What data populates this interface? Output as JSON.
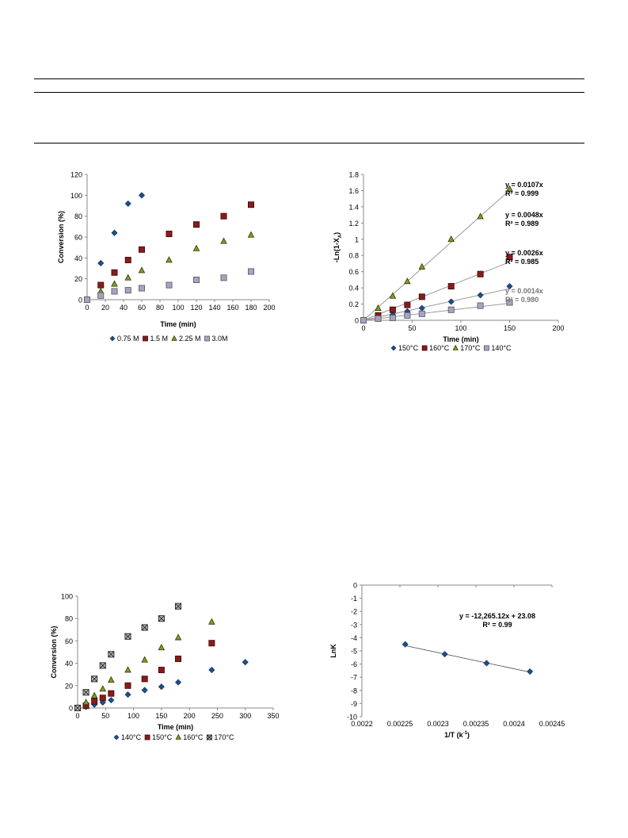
{
  "chart_data": [
    {
      "type": "scatter",
      "xlabel": "Time (min)",
      "ylabel": "Conversion (%)",
      "xlim": [
        0,
        200
      ],
      "ylim": [
        0,
        120
      ],
      "xticks": [
        "0",
        "20",
        "40",
        "60",
        "80",
        "100",
        "120",
        "140",
        "160",
        "180",
        "200"
      ],
      "yticks": [
        "0",
        "20",
        "40",
        "60",
        "80",
        "100",
        "120"
      ],
      "legend_position": "bottom",
      "series": [
        {
          "name": "0.75 M",
          "marker": "diamond",
          "color": "#1f4e8c",
          "x": [
            0,
            15,
            30,
            45,
            60
          ],
          "y": [
            0,
            35,
            64,
            92,
            100
          ]
        },
        {
          "name": "1.5 M",
          "marker": "square",
          "color": "#8b1a1a",
          "x": [
            0,
            15,
            30,
            45,
            60,
            90,
            120,
            150,
            180
          ],
          "y": [
            0,
            14,
            26,
            38,
            48,
            63,
            72,
            80,
            91
          ]
        },
        {
          "name": "2.25 M",
          "marker": "triangle",
          "color": "#8a9a1e",
          "x": [
            0,
            15,
            30,
            45,
            60,
            90,
            120,
            150,
            180
          ],
          "y": [
            0,
            8,
            15,
            21,
            28,
            38,
            49,
            56,
            62
          ]
        },
        {
          "name": "3.0M",
          "marker": "square-light",
          "color": "#a7a3c4",
          "x": [
            0,
            15,
            30,
            45,
            60,
            90,
            120,
            150,
            180
          ],
          "y": [
            0,
            4,
            8,
            9,
            11,
            14,
            19,
            21,
            27
          ]
        }
      ]
    },
    {
      "type": "scatter",
      "xlabel": "Time (min)",
      "ylabel": "-Ln(1-X",
      "ylabel_sub": "A",
      "ylabel_end": ")",
      "xlim": [
        0,
        200
      ],
      "ylim": [
        0,
        1.8
      ],
      "xticks": [
        "0",
        "50",
        "100",
        "150",
        "200"
      ],
      "yticks": [
        "0",
        "0.2",
        "0.4",
        "0.6",
        "0.8",
        "1",
        "1.2",
        "1.4",
        "1.6",
        "1.8"
      ],
      "legend_position": "bottom",
      "annotations": [
        {
          "lines": [
            "y = 0.0107x",
            "R² = 0.999"
          ],
          "color": "#000000"
        },
        {
          "lines": [
            "y = 0.0048x",
            "R² = 0.989"
          ],
          "color": "#000000"
        },
        {
          "lines": [
            "y = 0.0026x",
            "R² = 0.985"
          ],
          "color": "#000000"
        },
        {
          "lines": [
            "y = 0.0014x",
            "R² = 0.980"
          ],
          "color": "#777777"
        }
      ],
      "series": [
        {
          "name": "150°C",
          "marker": "diamond",
          "color": "#1f4e8c",
          "slope": 0.0026,
          "x": [
            0,
            15,
            30,
            45,
            60,
            90,
            120,
            150
          ],
          "y": [
            0,
            0.03,
            0.07,
            0.11,
            0.15,
            0.23,
            0.31,
            0.42
          ]
        },
        {
          "name": "160°C",
          "marker": "square",
          "color": "#8b1a1a",
          "slope": 0.0048,
          "x": [
            0,
            15,
            30,
            45,
            60,
            90,
            120,
            150
          ],
          "y": [
            0,
            0.06,
            0.13,
            0.19,
            0.29,
            0.42,
            0.57,
            0.78
          ]
        },
        {
          "name": "170°C",
          "marker": "triangle",
          "color": "#8a9a1e",
          "slope": 0.0107,
          "x": [
            0,
            15,
            30,
            45,
            60,
            90,
            120,
            150
          ],
          "y": [
            0,
            0.15,
            0.3,
            0.48,
            0.66,
            1.0,
            1.28,
            1.62
          ]
        },
        {
          "name": "140°C",
          "marker": "square-light",
          "color": "#a7a3c4",
          "slope": 0.0014,
          "x": [
            0,
            15,
            30,
            45,
            60,
            90,
            120,
            150
          ],
          "y": [
            0,
            0.02,
            0.03,
            0.06,
            0.08,
            0.13,
            0.18,
            0.22
          ]
        }
      ]
    },
    {
      "type": "scatter",
      "xlabel": "Time (min)",
      "ylabel": "Conversion (%)",
      "xlim": [
        0,
        350
      ],
      "ylim": [
        0,
        100
      ],
      "xticks": [
        "0",
        "50",
        "100",
        "150",
        "200",
        "250",
        "300",
        "350"
      ],
      "yticks": [
        "0",
        "20",
        "40",
        "60",
        "80",
        "100"
      ],
      "legend_position": "bottom",
      "series": [
        {
          "name": "140°C",
          "marker": "diamond",
          "color": "#1f4e8c",
          "x": [
            0,
            15,
            30,
            45,
            60,
            90,
            120,
            150,
            180,
            240,
            300
          ],
          "y": [
            0,
            1,
            3,
            5,
            7,
            12,
            16,
            19,
            23,
            34,
            41
          ]
        },
        {
          "name": "150°C",
          "marker": "square",
          "color": "#8b1a1a",
          "x": [
            0,
            15,
            30,
            45,
            60,
            90,
            120,
            150,
            180,
            240
          ],
          "y": [
            0,
            2,
            6,
            9,
            13,
            20,
            26,
            34,
            44,
            58
          ]
        },
        {
          "name": "160°C",
          "marker": "triangle",
          "color": "#8a9a1e",
          "x": [
            0,
            15,
            30,
            45,
            60,
            90,
            120,
            150,
            180,
            240
          ],
          "y": [
            0,
            5,
            11,
            17,
            25,
            34,
            43,
            54,
            63,
            77
          ]
        },
        {
          "name": "170°C",
          "marker": "square-x",
          "color": "#555555",
          "x": [
            0,
            15,
            30,
            45,
            60,
            90,
            120,
            150,
            180
          ],
          "y": [
            0,
            14,
            26,
            38,
            48,
            64,
            72,
            80,
            91
          ]
        }
      ]
    },
    {
      "type": "scatter",
      "xlabel": "1/T (k",
      "xlabel_sup": "-1",
      "xlabel_end": ")",
      "ylabel": "LnK",
      "xlim": [
        0.0022,
        0.00245
      ],
      "ylim": [
        -10,
        0
      ],
      "xticks": [
        "0.0022",
        "0.00225",
        "0.0023",
        "0.00235",
        "0.0024",
        "0.00245"
      ],
      "yticks": [
        "0",
        "-1",
        "-2",
        "-3",
        "-4",
        "-5",
        "-6",
        "-7",
        "-8",
        "-9",
        "-10"
      ],
      "annotations": [
        {
          "lines": [
            "y = -12,265.12x + 23.08",
            "R² = 0.99"
          ],
          "color": "#000000"
        }
      ],
      "series": [
        {
          "marker": "diamond",
          "color": "#1f4e8c",
          "fit": [
            -12265.12,
            23.08
          ],
          "x": [
            0.002257,
            0.002309,
            0.002364,
            0.002421
          ],
          "y": [
            -4.5,
            -5.25,
            -5.93,
            -6.57
          ]
        }
      ]
    }
  ]
}
